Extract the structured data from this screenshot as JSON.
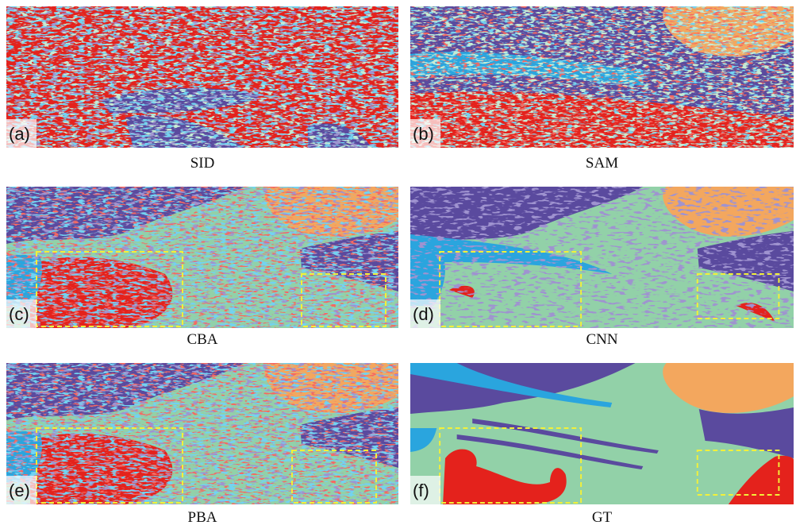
{
  "panels": [
    {
      "tag": "(a)",
      "caption": "SID"
    },
    {
      "tag": "(b)",
      "caption": "SAM"
    },
    {
      "tag": "(c)",
      "caption": "CBA"
    },
    {
      "tag": "(d)",
      "caption": "CNN"
    },
    {
      "tag": "(e)",
      "caption": "PBA"
    },
    {
      "tag": "(f)",
      "caption": "GT"
    }
  ]
}
